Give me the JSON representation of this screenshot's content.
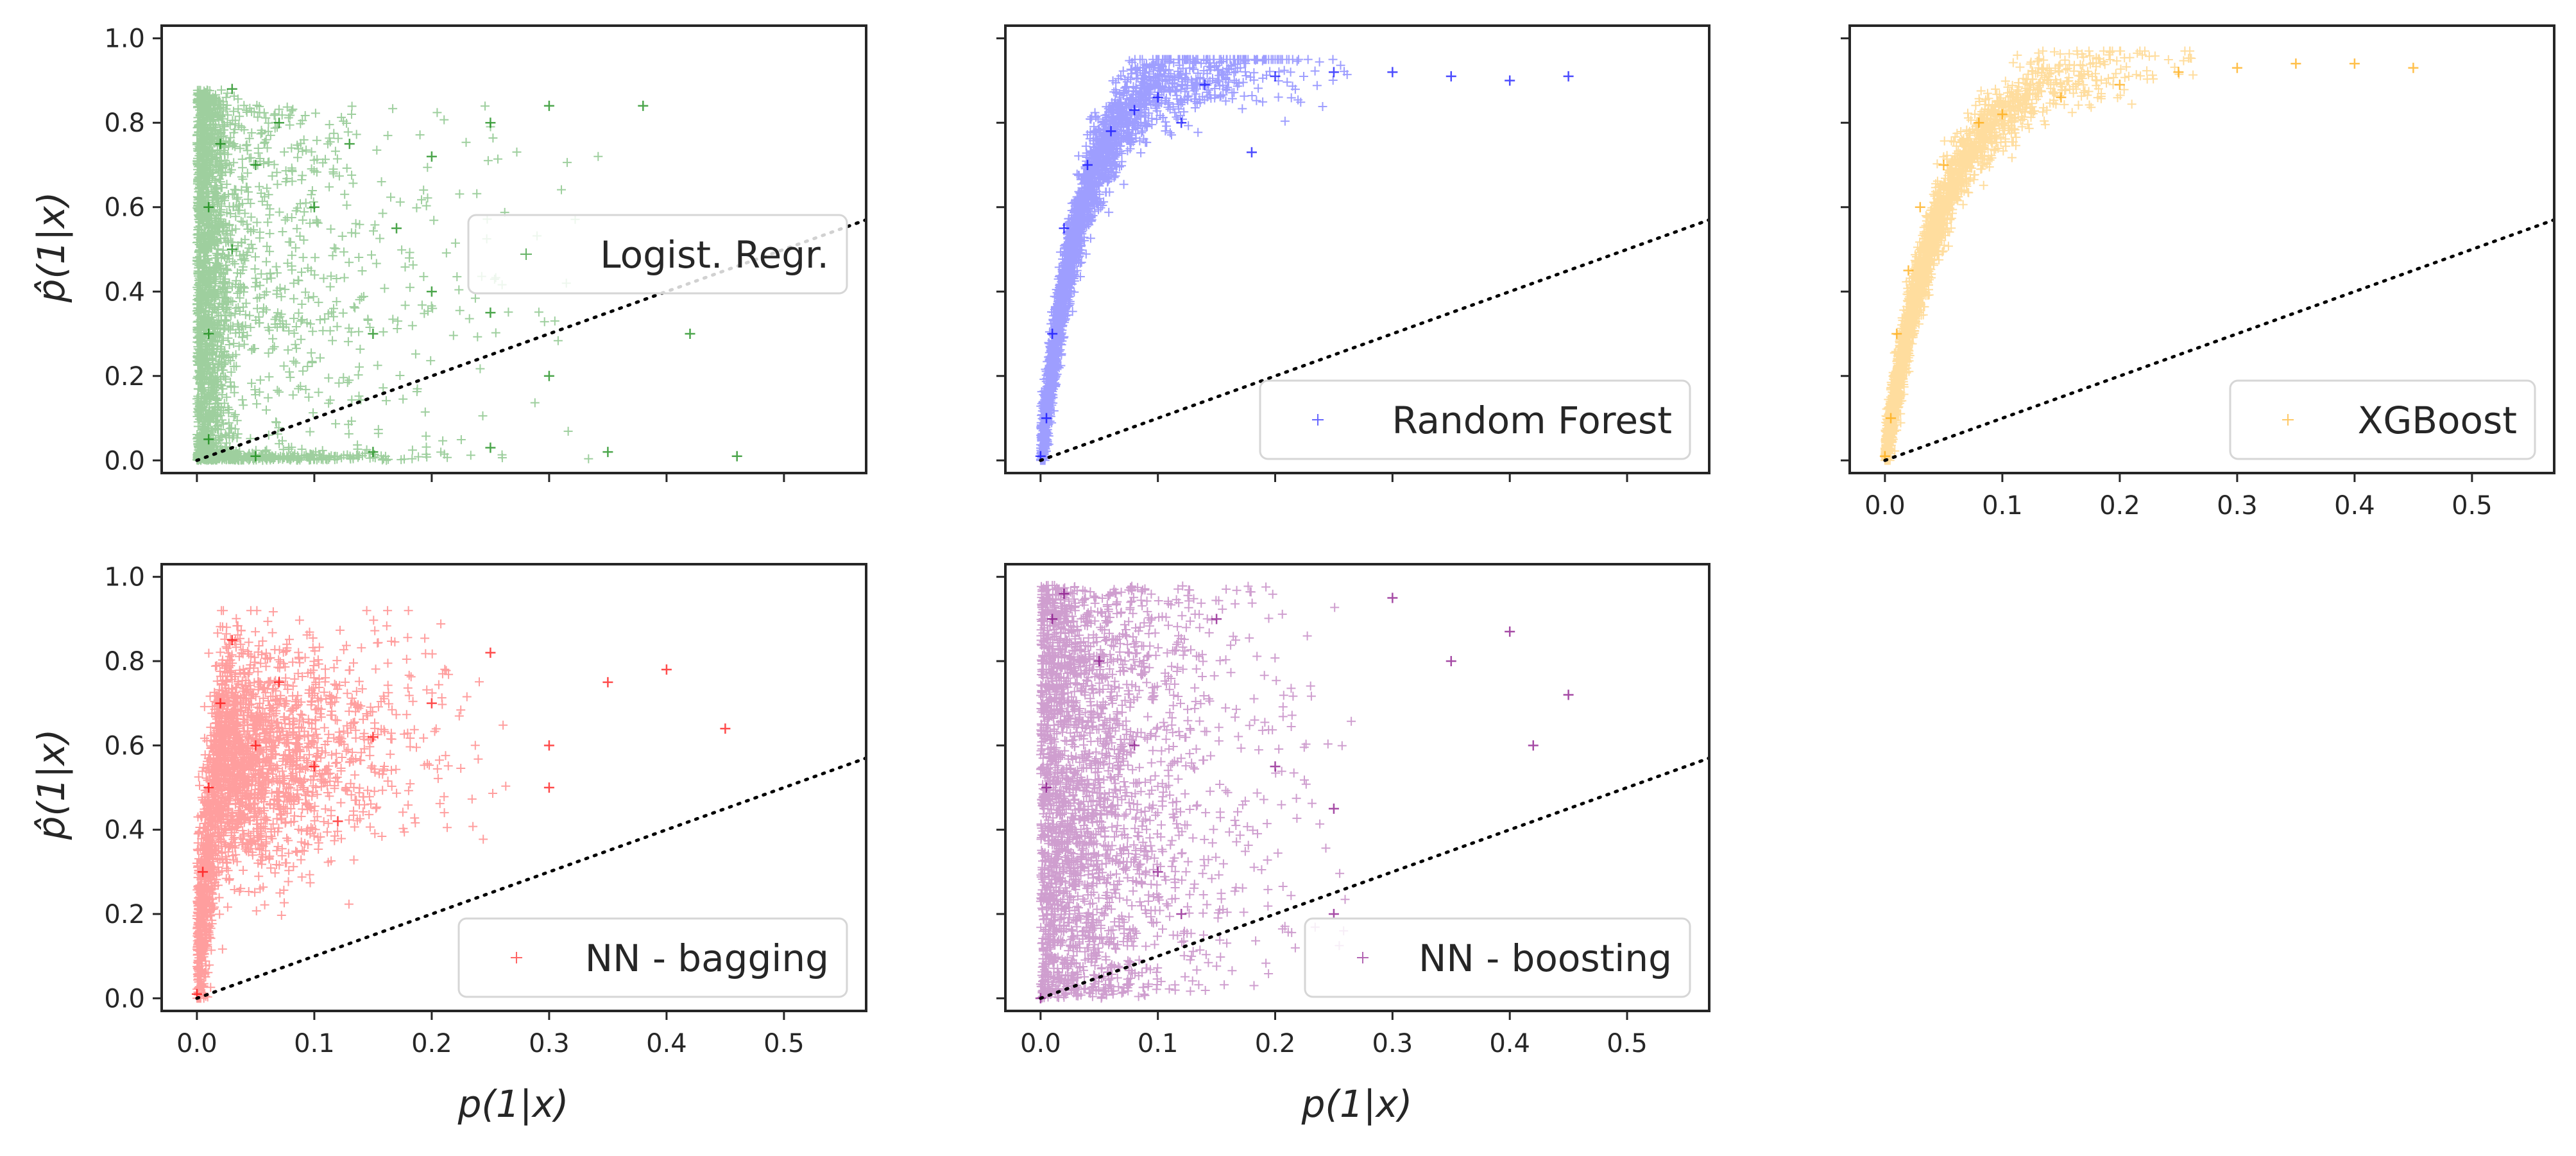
{
  "figure": {
    "panels": [
      {
        "label": "Logist. Regr.",
        "color": "#008000",
        "pattern": "logistic"
      },
      {
        "label": "Random Forest",
        "color": "#0000ff",
        "pattern": "rf"
      },
      {
        "label": "XGBoost",
        "color": "#ffa500",
        "pattern": "xgb"
      },
      {
        "label": "NN - bagging",
        "color": "#ff0000",
        "pattern": "bagging"
      },
      {
        "label": "NN - boosting",
        "color": "#800080",
        "pattern": "boosting"
      }
    ],
    "x_axis_label": "p(1|x)",
    "y_axis_label": "p̂(1|x)"
  },
  "chart_data": {
    "type": "scatter",
    "marker": "+",
    "x_ticks": [
      "0.0",
      "0.1",
      "0.2",
      "0.3",
      "0.4",
      "0.5"
    ],
    "y_ticks": [
      "0.0",
      "0.2",
      "0.4",
      "0.6",
      "0.8",
      "1.0"
    ],
    "xlim": [
      -0.03,
      0.57
    ],
    "ylim": [
      -0.03,
      1.03
    ],
    "reference_line": {
      "style": "dotted",
      "color": "#000000",
      "slope": 1,
      "intercept": 0
    },
    "legend_position": "right",
    "grid": false,
    "series": [
      {
        "name": "Logist. Regr.",
        "color": "#008000",
        "points": [
          [
            0.01,
            0.05
          ],
          [
            0.01,
            0.3
          ],
          [
            0.01,
            0.6
          ],
          [
            0.02,
            0.75
          ],
          [
            0.03,
            0.88
          ],
          [
            0.03,
            0.5
          ],
          [
            0.05,
            0.7
          ],
          [
            0.07,
            0.8
          ],
          [
            0.1,
            0.6
          ],
          [
            0.13,
            0.75
          ],
          [
            0.17,
            0.55
          ],
          [
            0.2,
            0.72
          ],
          [
            0.25,
            0.8
          ],
          [
            0.3,
            0.84
          ],
          [
            0.38,
            0.84
          ],
          [
            0.15,
            0.3
          ],
          [
            0.2,
            0.4
          ],
          [
            0.25,
            0.35
          ],
          [
            0.3,
            0.2
          ],
          [
            0.42,
            0.3
          ],
          [
            0.05,
            0.01
          ],
          [
            0.15,
            0.02
          ],
          [
            0.25,
            0.03
          ],
          [
            0.35,
            0.02
          ],
          [
            0.46,
            0.01
          ]
        ]
      },
      {
        "name": "Random Forest",
        "color": "#0000ff",
        "points": [
          [
            0.0,
            0.01
          ],
          [
            0.005,
            0.1
          ],
          [
            0.01,
            0.3
          ],
          [
            0.02,
            0.55
          ],
          [
            0.04,
            0.7
          ],
          [
            0.06,
            0.78
          ],
          [
            0.08,
            0.83
          ],
          [
            0.1,
            0.86
          ],
          [
            0.14,
            0.89
          ],
          [
            0.2,
            0.91
          ],
          [
            0.25,
            0.92
          ],
          [
            0.3,
            0.92
          ],
          [
            0.35,
            0.91
          ],
          [
            0.4,
            0.9
          ],
          [
            0.45,
            0.91
          ],
          [
            0.12,
            0.8
          ],
          [
            0.18,
            0.73
          ]
        ]
      },
      {
        "name": "XGBoost",
        "color": "#ffa500",
        "points": [
          [
            0.0,
            0.01
          ],
          [
            0.005,
            0.1
          ],
          [
            0.01,
            0.3
          ],
          [
            0.02,
            0.45
          ],
          [
            0.03,
            0.6
          ],
          [
            0.05,
            0.7
          ],
          [
            0.08,
            0.8
          ],
          [
            0.1,
            0.82
          ],
          [
            0.15,
            0.86
          ],
          [
            0.2,
            0.89
          ],
          [
            0.25,
            0.92
          ],
          [
            0.3,
            0.93
          ],
          [
            0.35,
            0.94
          ],
          [
            0.4,
            0.94
          ],
          [
            0.45,
            0.93
          ]
        ]
      },
      {
        "name": "NN - bagging",
        "color": "#ff0000",
        "points": [
          [
            0.0,
            0.01
          ],
          [
            0.005,
            0.3
          ],
          [
            0.01,
            0.5
          ],
          [
            0.02,
            0.7
          ],
          [
            0.03,
            0.85
          ],
          [
            0.05,
            0.6
          ],
          [
            0.07,
            0.75
          ],
          [
            0.1,
            0.55
          ],
          [
            0.15,
            0.62
          ],
          [
            0.2,
            0.7
          ],
          [
            0.25,
            0.82
          ],
          [
            0.3,
            0.6
          ],
          [
            0.35,
            0.75
          ],
          [
            0.4,
            0.78
          ],
          [
            0.45,
            0.64
          ],
          [
            0.12,
            0.42
          ],
          [
            0.3,
            0.5
          ]
        ]
      },
      {
        "name": "NN - boosting",
        "color": "#800080",
        "points": [
          [
            0.0,
            0.0
          ],
          [
            0.005,
            0.5
          ],
          [
            0.01,
            0.9
          ],
          [
            0.02,
            0.96
          ],
          [
            0.05,
            0.8
          ],
          [
            0.08,
            0.6
          ],
          [
            0.1,
            0.3
          ],
          [
            0.15,
            0.9
          ],
          [
            0.2,
            0.55
          ],
          [
            0.25,
            0.45
          ],
          [
            0.25,
            0.2
          ],
          [
            0.3,
            0.95
          ],
          [
            0.35,
            0.8
          ],
          [
            0.4,
            0.87
          ],
          [
            0.45,
            0.72
          ],
          [
            0.42,
            0.6
          ],
          [
            0.12,
            0.2
          ]
        ]
      }
    ]
  }
}
